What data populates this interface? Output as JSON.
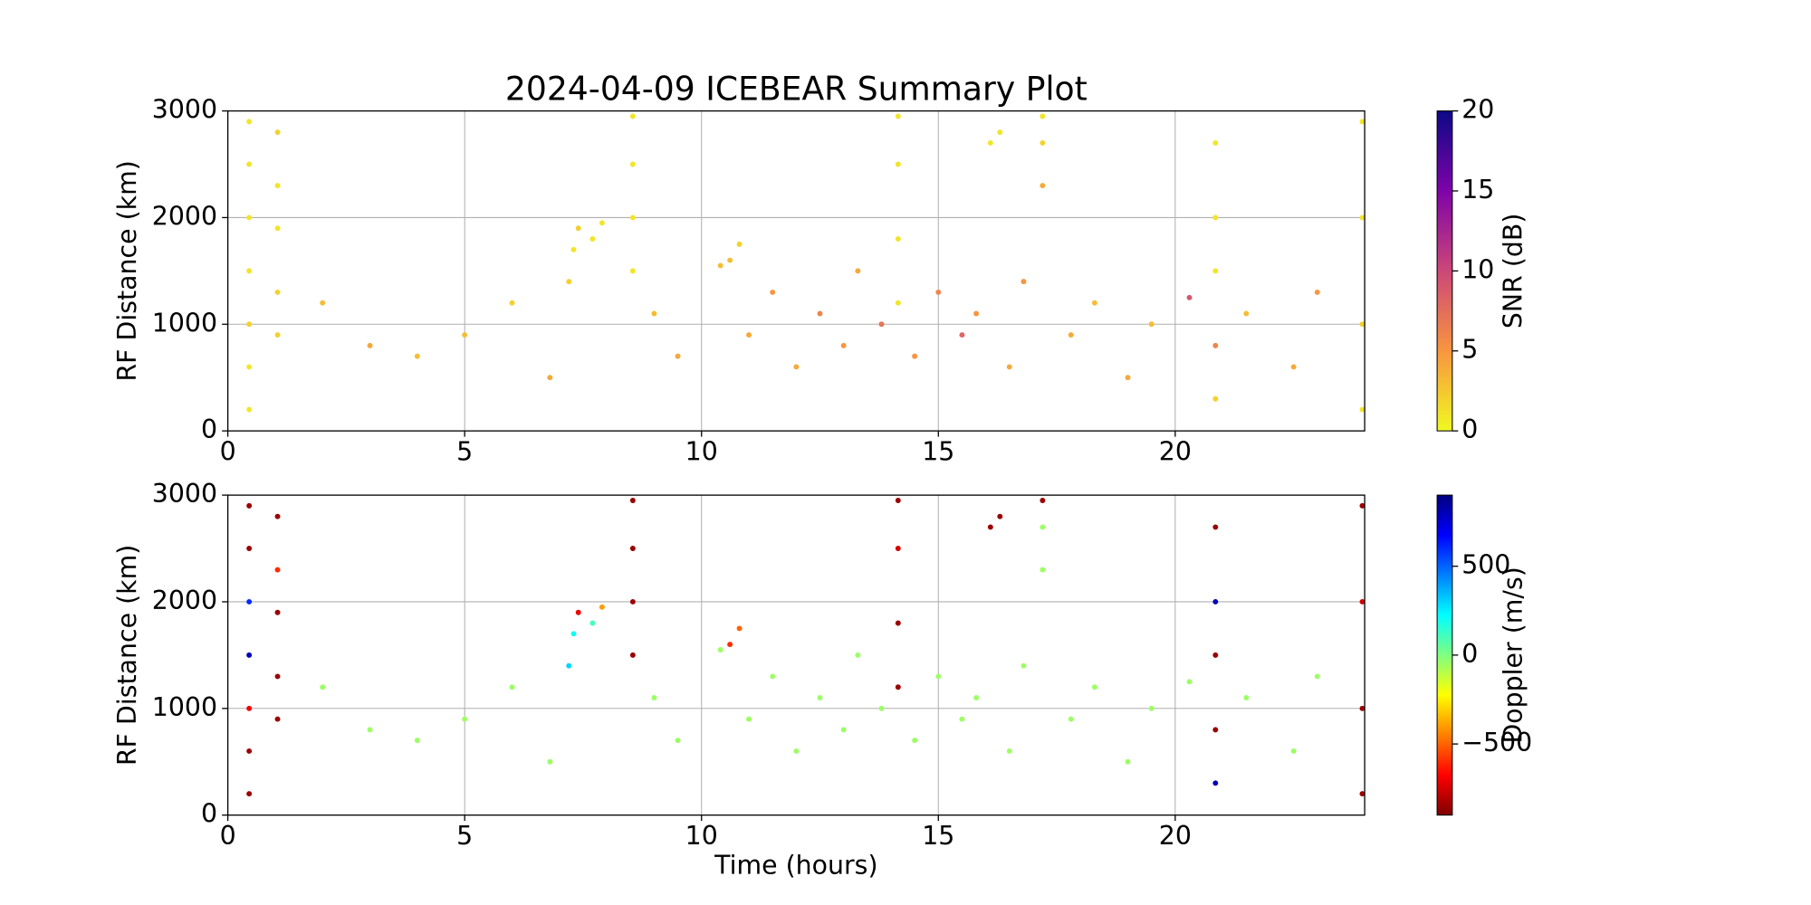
{
  "chart_data": [
    {
      "type": "scatter",
      "title": "2024-04-09 ICEBEAR Summary Plot",
      "ylabel": "RF Distance (km)",
      "xlim": [
        0,
        24
      ],
      "xticks": [
        0,
        5,
        10,
        15,
        20
      ],
      "ylim": [
        0,
        3000
      ],
      "yticks": [
        0,
        1000,
        2000,
        3000
      ],
      "grid": true,
      "colorbar": {
        "label": "SNR (dB)",
        "lim": [
          0,
          20
        ],
        "ticks": [
          0,
          5,
          10,
          15,
          20
        ],
        "colormap": "plasma_r"
      },
      "x": [
        0.45,
        0.45,
        0.45,
        0.45,
        0.45,
        0.45,
        0.45,
        1.05,
        1.05,
        1.05,
        1.05,
        1.05,
        7.2,
        7.3,
        7.4,
        7.7,
        7.9,
        8.55,
        8.55,
        8.55,
        8.55,
        10.4,
        10.6,
        10.8,
        14.15,
        14.15,
        14.15,
        14.15,
        16.1,
        16.3,
        17.2,
        17.2,
        17.2,
        20.85,
        20.85,
        20.85,
        20.85,
        20.85,
        23.95,
        23.95,
        23.95,
        23.95,
        2,
        3,
        4,
        5,
        6,
        6.8,
        9,
        9.5,
        11,
        11.5,
        12,
        12.5,
        13,
        13.3,
        13.8,
        14.5,
        15,
        15.5,
        15.8,
        16.5,
        16.8,
        17.8,
        18.3,
        19,
        19.5,
        20.3,
        21.5,
        22.5,
        23
      ],
      "y": [
        200,
        600,
        1000,
        1500,
        2000,
        2500,
        2900,
        900,
        1300,
        1900,
        2300,
        2800,
        1400,
        1700,
        1900,
        1800,
        1950,
        1500,
        2000,
        2500,
        2950,
        1550,
        1600,
        1750,
        1200,
        1800,
        2500,
        2950,
        2700,
        2800,
        2300,
        2700,
        2950,
        300,
        800,
        1500,
        2000,
        2700,
        200,
        1000,
        2000,
        2900,
        1200,
        800,
        700,
        900,
        1200,
        500,
        1100,
        700,
        900,
        1300,
        600,
        1100,
        800,
        1500,
        1000,
        700,
        1300,
        900,
        1100,
        600,
        1400,
        900,
        1200,
        500,
        1000,
        1250,
        1100,
        600,
        1300
      ],
      "c": [
        1,
        1,
        2,
        1,
        1,
        1,
        1,
        2,
        2,
        1,
        1,
        2,
        2,
        1,
        2,
        1,
        1,
        1,
        1,
        1,
        1,
        3,
        3,
        2,
        1,
        1,
        1,
        1,
        1,
        1,
        4,
        2,
        1,
        2,
        6,
        1,
        1,
        1,
        1,
        2,
        1,
        1,
        3,
        4,
        3,
        3,
        2,
        4,
        3,
        4,
        4,
        5,
        4,
        6,
        5,
        4,
        7,
        5,
        6,
        8,
        5,
        4,
        5,
        4,
        3,
        4,
        3,
        9,
        3,
        4,
        5
      ]
    },
    {
      "type": "scatter",
      "xlabel": "Time (hours)",
      "ylabel": "RF Distance (km)",
      "xlim": [
        0,
        24
      ],
      "xticks": [
        0,
        5,
        10,
        15,
        20
      ],
      "ylim": [
        0,
        3000
      ],
      "yticks": [
        0,
        1000,
        2000,
        3000
      ],
      "grid": true,
      "colorbar": {
        "label": "Doppler (m/s)",
        "lim": [
          -900,
          900
        ],
        "ticks": [
          {
            "value": -500,
            "label": "−500"
          },
          0,
          500
        ],
        "colormap": "jet_r"
      },
      "x": [
        0.45,
        0.45,
        0.45,
        0.45,
        0.45,
        0.45,
        0.45,
        1.05,
        1.05,
        1.05,
        1.05,
        1.05,
        7.2,
        7.3,
        7.4,
        7.7,
        7.9,
        8.55,
        8.55,
        8.55,
        8.55,
        10.4,
        10.6,
        10.8,
        14.15,
        14.15,
        14.15,
        14.15,
        16.1,
        16.3,
        17.2,
        17.2,
        17.2,
        20.85,
        20.85,
        20.85,
        20.85,
        20.85,
        23.95,
        23.95,
        23.95,
        23.95,
        2,
        3,
        4,
        5,
        6,
        6.8,
        9,
        9.5,
        11,
        11.5,
        12,
        12.5,
        13,
        13.3,
        13.8,
        14.5,
        15,
        15.5,
        15.8,
        16.5,
        16.8,
        17.8,
        18.3,
        19,
        19.5,
        20.3,
        21.5,
        22.5,
        23
      ],
      "y": [
        200,
        600,
        1000,
        1500,
        2000,
        2500,
        2900,
        900,
        1300,
        1900,
        2300,
        2800,
        1400,
        1700,
        1900,
        1800,
        1950,
        1500,
        2000,
        2500,
        2950,
        1550,
        1600,
        1750,
        1200,
        1800,
        2500,
        2950,
        2700,
        2800,
        2300,
        2700,
        2950,
        300,
        800,
        1500,
        2000,
        2700,
        200,
        1000,
        2000,
        2900,
        1200,
        800,
        700,
        900,
        1200,
        500,
        1100,
        700,
        900,
        1300,
        600,
        1100,
        800,
        1500,
        1000,
        700,
        1300,
        900,
        1100,
        600,
        1400,
        900,
        1200,
        500,
        1000,
        1250,
        1100,
        600,
        1300
      ],
      "c": [
        -850,
        -850,
        -700,
        800,
        600,
        -850,
        -850,
        -850,
        -850,
        -850,
        -600,
        -850,
        300,
        200,
        -700,
        100,
        -400,
        -850,
        -850,
        -850,
        -850,
        -50,
        -600,
        -500,
        -850,
        -850,
        -750,
        -850,
        -850,
        -850,
        -50,
        -50,
        -850,
        800,
        -850,
        -850,
        800,
        -850,
        -850,
        -850,
        -750,
        -850,
        -50,
        -50,
        -50,
        -50,
        -50,
        -50,
        -50,
        -50,
        -50,
        -50,
        -50,
        -50,
        -50,
        -50,
        -50,
        -50,
        -50,
        -50,
        -50,
        -50,
        -50,
        -50,
        -50,
        -50,
        -50,
        -50,
        -50,
        -50,
        -50
      ]
    }
  ]
}
